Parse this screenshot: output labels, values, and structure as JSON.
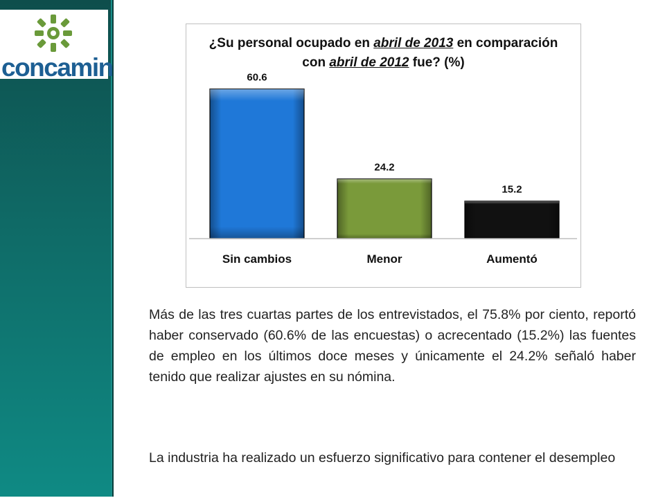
{
  "brand": {
    "logo_text": "concamin"
  },
  "chart_data": {
    "type": "bar",
    "title_parts": [
      {
        "text": "¿Su personal ocupado en ",
        "u": false
      },
      {
        "text": "abril de 2013",
        "u": true
      },
      {
        "text": " en comparación",
        "u": false,
        "br": true
      },
      {
        "text": "con ",
        "u": false
      },
      {
        "text": "abril de 2012",
        "u": true
      },
      {
        "text": " fue? (%)",
        "u": false
      }
    ],
    "categories": [
      "Sin cambios",
      "Menor",
      "Aumentó"
    ],
    "values": [
      60.6,
      24.2,
      15.2
    ],
    "value_labels": [
      "60.6",
      "24.2",
      "15.2"
    ],
    "colors": [
      "#1f78d8",
      "#7a9a3a",
      "#111111"
    ],
    "ylim": [
      0,
      70
    ],
    "grid": false,
    "legend": "none"
  },
  "paragraphs": {
    "p1": "Más de las tres cuartas partes de los entrevistados, el 75.8% por ciento, reportó haber conservado (60.6% de las encuestas) o acrecentado (15.2%) las fuentes de empleo en los últimos doce meses y únicamente el 24.2% señaló haber tenido que realizar ajustes en su nómina.",
    "p2": "La industria ha realizado un esfuerzo significativo para contener el desempleo"
  }
}
